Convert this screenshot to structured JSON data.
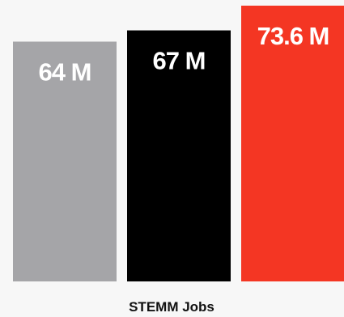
{
  "chart_data": {
    "type": "bar",
    "categories": [
      "",
      "",
      ""
    ],
    "values": [
      64,
      67,
      73.6
    ],
    "value_labels": [
      "64 M",
      "67 M",
      "73.6 M"
    ],
    "colors": [
      "#a5a5a8",
      "#000000",
      "#f43623"
    ],
    "title": "",
    "xlabel": "STEMM Jobs",
    "ylabel": "",
    "ylim": [
      0,
      73.6
    ],
    "grid": false,
    "legend": "none"
  }
}
